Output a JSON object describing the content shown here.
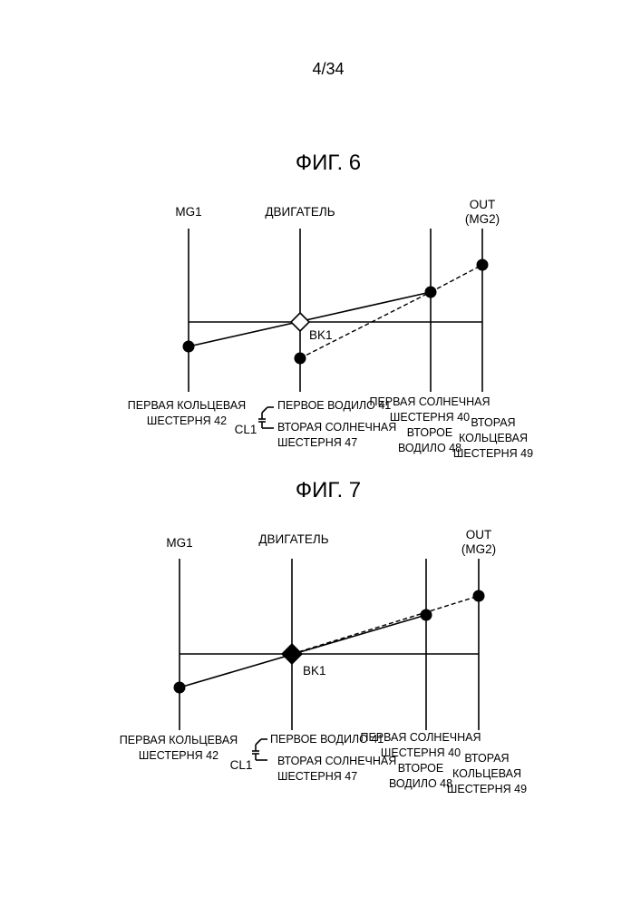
{
  "page_number": "4/34",
  "figures": [
    {
      "id": "fig6",
      "title": "ФИГ. 6",
      "axes": {
        "mg1": "MG1",
        "engine": "ДВИГАТЕЛЬ",
        "out": "OUT",
        "out_sub": "(MG2)"
      },
      "bk1": "BK1",
      "bk1_state": "released",
      "cl1": "CL1",
      "bottom_labels": {
        "mg1": [
          "ПЕРВАЯ КОЛЬЦЕВАЯ",
          "ШЕСТЕРНЯ 42"
        ],
        "engine_top": "ПЕРВОЕ ВОДИЛО 41",
        "engine_bottom": [
          "ВТОРАЯ СОЛНЕЧНАЯ",
          "ШЕСТЕРНЯ 47"
        ],
        "sun": [
          "ПЕРВАЯ СОЛНЕЧНАЯ",
          "ШЕСТЕРНЯ 40",
          "ВТОРОЕ",
          "ВОДИЛО 48"
        ],
        "out": [
          "ВТОРАЯ",
          "КОЛЬЦЕВАЯ",
          "ШЕСТЕРНЯ 49"
        ]
      }
    },
    {
      "id": "fig7",
      "title": "ФИГ. 7",
      "axes": {
        "mg1": "MG1",
        "engine": "ДВИГАТЕЛЬ",
        "out": "OUT",
        "out_sub": "(MG2)"
      },
      "bk1": "BK1",
      "bk1_state": "engaged",
      "cl1": "CL1",
      "bottom_labels": {
        "mg1": [
          "ПЕРВАЯ КОЛЬЦЕВАЯ",
          "ШЕСТЕРНЯ 42"
        ],
        "engine_top": "ПЕРВОЕ ВОДИЛО 41",
        "engine_bottom": [
          "ВТОРАЯ СОЛНЕЧНАЯ",
          "ШЕСТЕРНЯ 47"
        ],
        "sun": [
          "ПЕРВАЯ СОЛНЕЧНАЯ",
          "ШЕСТЕРНЯ 40",
          "ВТОРОЕ",
          "ВОДИЛО 48"
        ],
        "out": [
          "ВТОРАЯ",
          "КОЛЬЦЕВАЯ",
          "ШЕСТЕРНЯ 49"
        ]
      }
    }
  ]
}
